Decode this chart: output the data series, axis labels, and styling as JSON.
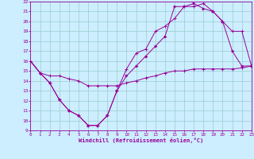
{
  "xlabel": "Windchill (Refroidissement éolien,°C)",
  "bg_color": "#cceeff",
  "line_color": "#990099",
  "grid_color": "#99cccc",
  "xlim": [
    0,
    23
  ],
  "ylim": [
    9,
    22
  ],
  "xticks": [
    0,
    1,
    2,
    3,
    4,
    5,
    6,
    7,
    8,
    9,
    10,
    11,
    12,
    13,
    14,
    15,
    16,
    17,
    18,
    19,
    20,
    21,
    22,
    23
  ],
  "yticks": [
    9,
    10,
    11,
    12,
    13,
    14,
    15,
    16,
    17,
    18,
    19,
    20,
    21,
    22
  ],
  "curve1_x": [
    0,
    1,
    2,
    3,
    4,
    5,
    6,
    7,
    8,
    9,
    10,
    11,
    12,
    13,
    14,
    15,
    16,
    17,
    18,
    19,
    20,
    21,
    22,
    23
  ],
  "curve1_y": [
    16.0,
    14.8,
    13.8,
    12.1,
    11.0,
    10.5,
    9.5,
    9.5,
    10.5,
    13.0,
    15.2,
    16.8,
    17.2,
    19.0,
    19.5,
    20.3,
    21.5,
    21.5,
    21.8,
    21.0,
    20.0,
    19.0,
    19.0,
    15.5
  ],
  "curve2_x": [
    0,
    1,
    2,
    3,
    4,
    5,
    6,
    7,
    8,
    9,
    10,
    11,
    12,
    13,
    14,
    15,
    16,
    17,
    18,
    19,
    20,
    21,
    22,
    23
  ],
  "curve2_y": [
    16.0,
    14.8,
    13.8,
    12.1,
    11.0,
    10.5,
    9.5,
    9.5,
    10.5,
    13.0,
    14.5,
    15.5,
    16.5,
    17.5,
    18.5,
    21.5,
    21.5,
    21.8,
    21.3,
    21.0,
    20.0,
    17.0,
    15.5,
    15.5
  ],
  "curve3_x": [
    0,
    1,
    2,
    3,
    4,
    5,
    6,
    7,
    8,
    9,
    10,
    11,
    12,
    13,
    14,
    15,
    16,
    17,
    18,
    19,
    20,
    21,
    22,
    23
  ],
  "curve3_y": [
    16.0,
    14.8,
    14.5,
    14.5,
    14.2,
    14.0,
    13.5,
    13.5,
    13.5,
    13.5,
    13.8,
    14.0,
    14.3,
    14.5,
    14.8,
    15.0,
    15.0,
    15.2,
    15.2,
    15.2,
    15.2,
    15.2,
    15.3,
    15.5
  ]
}
